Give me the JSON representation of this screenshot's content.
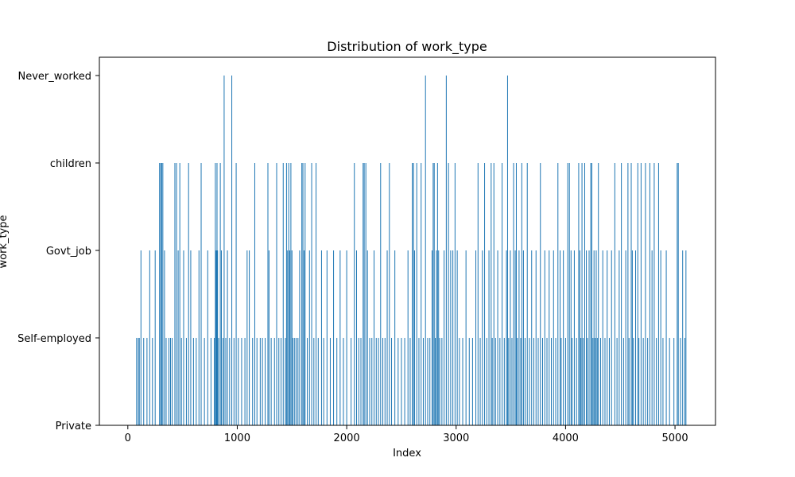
{
  "chart_data": {
    "type": "bar",
    "title": "Distribution of work_type",
    "xlabel": "Index",
    "ylabel": "work_type",
    "bar_color": "#1f77b4",
    "grid": false,
    "xlim": [
      -260,
      5370
    ],
    "xticks": [
      0,
      1000,
      2000,
      3000,
      4000,
      5000
    ],
    "xtick_labels": [
      "0",
      "1000",
      "2000",
      "3000",
      "4000",
      "5000"
    ],
    "categories": [
      "Private",
      "Self-employed",
      "Govt_job",
      "children",
      "Never_worked"
    ],
    "note_values": "values list category index (0=Private,1=Self-employed,2=Govt_job,3=children,4=Never_worked) per sampled index x; estimated from bar heights",
    "points": [
      [
        80,
        1
      ],
      [
        95,
        1
      ],
      [
        105,
        1
      ],
      [
        120,
        2
      ],
      [
        145,
        1
      ],
      [
        175,
        1
      ],
      [
        200,
        2
      ],
      [
        225,
        1
      ],
      [
        250,
        2
      ],
      [
        290,
        3
      ],
      [
        300,
        3
      ],
      [
        310,
        3
      ],
      [
        320,
        3
      ],
      [
        335,
        2
      ],
      [
        350,
        1
      ],
      [
        375,
        1
      ],
      [
        390,
        1
      ],
      [
        405,
        1
      ],
      [
        430,
        3
      ],
      [
        445,
        3
      ],
      [
        460,
        2
      ],
      [
        475,
        3
      ],
      [
        490,
        1
      ],
      [
        510,
        2
      ],
      [
        535,
        1
      ],
      [
        555,
        3
      ],
      [
        575,
        2
      ],
      [
        600,
        1
      ],
      [
        625,
        1
      ],
      [
        650,
        2
      ],
      [
        670,
        3
      ],
      [
        700,
        1
      ],
      [
        730,
        2
      ],
      [
        760,
        1
      ],
      [
        790,
        1
      ],
      [
        800,
        3
      ],
      [
        805,
        2
      ],
      [
        810,
        2
      ],
      [
        815,
        3
      ],
      [
        820,
        2
      ],
      [
        830,
        1
      ],
      [
        845,
        3
      ],
      [
        855,
        2
      ],
      [
        870,
        1
      ],
      [
        880,
        4
      ],
      [
        895,
        1
      ],
      [
        910,
        2
      ],
      [
        930,
        1
      ],
      [
        950,
        4
      ],
      [
        970,
        1
      ],
      [
        990,
        3
      ],
      [
        1010,
        1
      ],
      [
        1040,
        1
      ],
      [
        1070,
        1
      ],
      [
        1090,
        2
      ],
      [
        1110,
        2
      ],
      [
        1140,
        1
      ],
      [
        1160,
        3
      ],
      [
        1180,
        1
      ],
      [
        1210,
        1
      ],
      [
        1230,
        1
      ],
      [
        1255,
        1
      ],
      [
        1280,
        3
      ],
      [
        1290,
        2
      ],
      [
        1310,
        1
      ],
      [
        1340,
        1
      ],
      [
        1360,
        3
      ],
      [
        1380,
        1
      ],
      [
        1400,
        1
      ],
      [
        1420,
        3
      ],
      [
        1440,
        1
      ],
      [
        1450,
        3
      ],
      [
        1460,
        2
      ],
      [
        1470,
        3
      ],
      [
        1480,
        2
      ],
      [
        1490,
        3
      ],
      [
        1500,
        2
      ],
      [
        1510,
        1
      ],
      [
        1525,
        1
      ],
      [
        1540,
        1
      ],
      [
        1555,
        1
      ],
      [
        1570,
        2
      ],
      [
        1590,
        3
      ],
      [
        1600,
        3
      ],
      [
        1610,
        2
      ],
      [
        1620,
        3
      ],
      [
        1640,
        1
      ],
      [
        1660,
        2
      ],
      [
        1680,
        3
      ],
      [
        1700,
        1
      ],
      [
        1720,
        3
      ],
      [
        1740,
        1
      ],
      [
        1770,
        2
      ],
      [
        1790,
        1
      ],
      [
        1820,
        2
      ],
      [
        1850,
        1
      ],
      [
        1880,
        2
      ],
      [
        1910,
        1
      ],
      [
        1940,
        2
      ],
      [
        1970,
        1
      ],
      [
        2000,
        2
      ],
      [
        2040,
        1
      ],
      [
        2070,
        3
      ],
      [
        2090,
        2
      ],
      [
        2110,
        1
      ],
      [
        2130,
        1
      ],
      [
        2150,
        3
      ],
      [
        2160,
        3
      ],
      [
        2175,
        3
      ],
      [
        2190,
        2
      ],
      [
        2210,
        1
      ],
      [
        2230,
        1
      ],
      [
        2250,
        2
      ],
      [
        2270,
        1
      ],
      [
        2290,
        1
      ],
      [
        2310,
        3
      ],
      [
        2330,
        1
      ],
      [
        2350,
        1
      ],
      [
        2370,
        2
      ],
      [
        2390,
        3
      ],
      [
        2410,
        1
      ],
      [
        2440,
        2
      ],
      [
        2470,
        1
      ],
      [
        2500,
        1
      ],
      [
        2530,
        1
      ],
      [
        2560,
        2
      ],
      [
        2580,
        1
      ],
      [
        2600,
        3
      ],
      [
        2610,
        3
      ],
      [
        2620,
        2
      ],
      [
        2640,
        3
      ],
      [
        2660,
        1
      ],
      [
        2680,
        3
      ],
      [
        2700,
        1
      ],
      [
        2720,
        4
      ],
      [
        2740,
        1
      ],
      [
        2760,
        1
      ],
      [
        2780,
        2
      ],
      [
        2790,
        3
      ],
      [
        2800,
        3
      ],
      [
        2810,
        1
      ],
      [
        2820,
        2
      ],
      [
        2830,
        3
      ],
      [
        2840,
        2
      ],
      [
        2850,
        1
      ],
      [
        2870,
        1
      ],
      [
        2890,
        2
      ],
      [
        2910,
        4
      ],
      [
        2930,
        3
      ],
      [
        2950,
        2
      ],
      [
        2970,
        2
      ],
      [
        2990,
        3
      ],
      [
        3010,
        2
      ],
      [
        3030,
        1
      ],
      [
        3060,
        1
      ],
      [
        3090,
        2
      ],
      [
        3120,
        1
      ],
      [
        3150,
        1
      ],
      [
        3180,
        2
      ],
      [
        3200,
        3
      ],
      [
        3220,
        1
      ],
      [
        3240,
        2
      ],
      [
        3260,
        3
      ],
      [
        3280,
        1
      ],
      [
        3300,
        2
      ],
      [
        3320,
        3
      ],
      [
        3330,
        1
      ],
      [
        3345,
        3
      ],
      [
        3360,
        1
      ],
      [
        3380,
        2
      ],
      [
        3400,
        1
      ],
      [
        3420,
        3
      ],
      [
        3440,
        1
      ],
      [
        3460,
        2
      ],
      [
        3470,
        4
      ],
      [
        3480,
        1
      ],
      [
        3495,
        2
      ],
      [
        3510,
        1
      ],
      [
        3525,
        3
      ],
      [
        3540,
        2
      ],
      [
        3550,
        3
      ],
      [
        3560,
        1
      ],
      [
        3575,
        2
      ],
      [
        3590,
        1
      ],
      [
        3600,
        3
      ],
      [
        3615,
        2
      ],
      [
        3630,
        1
      ],
      [
        3650,
        3
      ],
      [
        3670,
        1
      ],
      [
        3690,
        2
      ],
      [
        3710,
        1
      ],
      [
        3730,
        2
      ],
      [
        3750,
        1
      ],
      [
        3770,
        3
      ],
      [
        3790,
        1
      ],
      [
        3810,
        2
      ],
      [
        3830,
        1
      ],
      [
        3850,
        2
      ],
      [
        3870,
        1
      ],
      [
        3890,
        2
      ],
      [
        3910,
        1
      ],
      [
        3930,
        3
      ],
      [
        3950,
        2
      ],
      [
        3960,
        1
      ],
      [
        3980,
        2
      ],
      [
        4000,
        1
      ],
      [
        4020,
        3
      ],
      [
        4035,
        3
      ],
      [
        4050,
        2
      ],
      [
        4060,
        1
      ],
      [
        4080,
        2
      ],
      [
        4100,
        1
      ],
      [
        4120,
        3
      ],
      [
        4130,
        2
      ],
      [
        4140,
        1
      ],
      [
        4150,
        3
      ],
      [
        4160,
        1
      ],
      [
        4175,
        3
      ],
      [
        4190,
        2
      ],
      [
        4200,
        1
      ],
      [
        4215,
        2
      ],
      [
        4230,
        3
      ],
      [
        4240,
        3
      ],
      [
        4250,
        1
      ],
      [
        4260,
        2
      ],
      [
        4270,
        1
      ],
      [
        4280,
        2
      ],
      [
        4290,
        1
      ],
      [
        4300,
        3
      ],
      [
        4320,
        1
      ],
      [
        4340,
        2
      ],
      [
        4360,
        1
      ],
      [
        4380,
        2
      ],
      [
        4400,
        1
      ],
      [
        4420,
        2
      ],
      [
        4450,
        3
      ],
      [
        4470,
        1
      ],
      [
        4490,
        2
      ],
      [
        4510,
        3
      ],
      [
        4530,
        1
      ],
      [
        4550,
        2
      ],
      [
        4570,
        3
      ],
      [
        4580,
        1
      ],
      [
        4600,
        3
      ],
      [
        4610,
        2
      ],
      [
        4620,
        1
      ],
      [
        4640,
        2
      ],
      [
        4660,
        3
      ],
      [
        4670,
        1
      ],
      [
        4690,
        3
      ],
      [
        4710,
        1
      ],
      [
        4730,
        3
      ],
      [
        4750,
        1
      ],
      [
        4770,
        3
      ],
      [
        4790,
        2
      ],
      [
        4810,
        3
      ],
      [
        4830,
        1
      ],
      [
        4850,
        3
      ],
      [
        4870,
        2
      ],
      [
        4890,
        1
      ],
      [
        4920,
        2
      ],
      [
        4950,
        1
      ],
      [
        4990,
        1
      ],
      [
        5020,
        3
      ],
      [
        5030,
        3
      ],
      [
        5050,
        1
      ],
      [
        5070,
        2
      ],
      [
        5090,
        1
      ],
      [
        5100,
        2
      ]
    ]
  }
}
